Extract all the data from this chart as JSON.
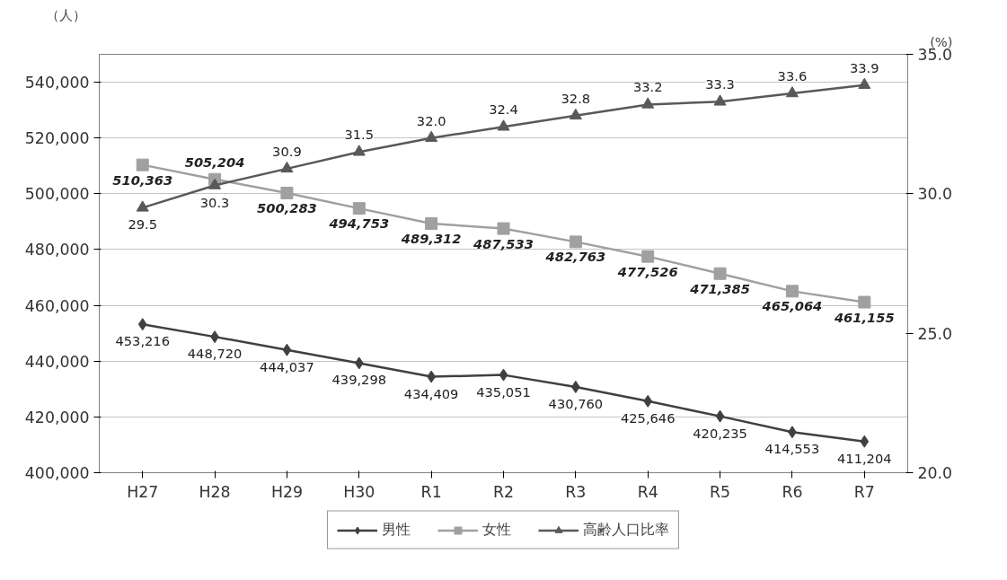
{
  "chart_data": {
    "type": "line",
    "ylabel": "（人）",
    "y2label": "(%)",
    "categories": [
      "H27",
      "H28",
      "H29",
      "H30",
      "R1",
      "R2",
      "R3",
      "R4",
      "R5",
      "R6",
      "R7"
    ],
    "ylim": [
      400000,
      550000
    ],
    "yticks": [
      {
        "value": 400000,
        "label": "400,000"
      },
      {
        "value": 420000,
        "label": "420,000"
      },
      {
        "value": 440000,
        "label": "440,000"
      },
      {
        "value": 460000,
        "label": "460,000"
      },
      {
        "value": 480000,
        "label": "480,000"
      },
      {
        "value": 500000,
        "label": "500,000"
      },
      {
        "value": 520000,
        "label": "520,000"
      },
      {
        "value": 540000,
        "label": "540,000"
      }
    ],
    "y2lim": [
      20,
      35
    ],
    "y2ticks": [
      {
        "value": 20,
        "label": "20.0"
      },
      {
        "value": 25,
        "label": "25.0"
      },
      {
        "value": 30,
        "label": "30.0"
      },
      {
        "value": 35,
        "label": "35.0"
      }
    ],
    "grid": "y",
    "legend": "bottom",
    "line_style": "solid",
    "series": [
      {
        "name": "男性",
        "color": "#404040",
        "marker": "diamond",
        "values": [
          453216,
          448720,
          444037,
          439298,
          434409,
          435051,
          430760,
          425646,
          420235,
          414553,
          411204
        ],
        "value_labels": [
          "453,216",
          "448,720",
          "444,037",
          "439,298",
          "434,409",
          "435,051",
          "430,760",
          "425,646",
          "420,235",
          "414,553",
          "411,204"
        ]
      },
      {
        "name": "女性",
        "color": "#a0a0a0",
        "marker": "square",
        "values": [
          510363,
          505204,
          500283,
          494753,
          489312,
          487533,
          482763,
          477526,
          471385,
          465064,
          461155
        ],
        "value_labels": [
          "510,363",
          "505,204",
          "500,283",
          "494,753",
          "489,312",
          "487,533",
          "482,763",
          "477,526",
          "471,385",
          "465,064",
          "461,155"
        ]
      },
      {
        "name": "高齢人口比率",
        "color": "#595959",
        "marker": "triangle",
        "axis": "y2",
        "values": [
          29.5,
          30.3,
          30.9,
          31.5,
          32.0,
          32.4,
          32.8,
          33.2,
          33.3,
          33.6,
          33.9
        ],
        "value_labels": [
          "29.5",
          "30.3",
          "30.9",
          "31.5",
          "32.0",
          "32.4",
          "32.8",
          "33.2",
          "33.3",
          "33.6",
          "33.9"
        ]
      }
    ]
  }
}
